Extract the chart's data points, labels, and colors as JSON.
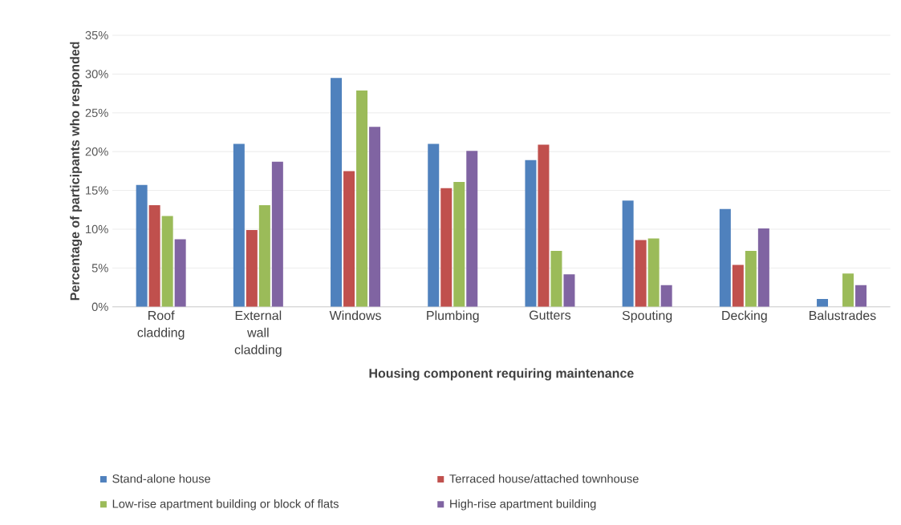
{
  "chart_data": {
    "type": "bar",
    "xlabel": "Housing component requiring maintenance",
    "ylabel": "Percentage of participants who responded",
    "categories": [
      "Roof cladding",
      "External wall cladding",
      "Windows",
      "Plumbing",
      "Gutters",
      "Spouting",
      "Decking",
      "Balustrades"
    ],
    "series": [
      {
        "name": "Stand-alone house",
        "color": "#4f81bd",
        "values": [
          15.7,
          21.0,
          29.5,
          21.0,
          18.9,
          13.7,
          12.6,
          1.0
        ]
      },
      {
        "name": "Terraced house/attached townhouse",
        "color": "#c0504d",
        "values": [
          13.1,
          9.9,
          17.5,
          15.3,
          20.9,
          8.6,
          5.4,
          0
        ]
      },
      {
        "name": "Low-rise apartment building or block of flats",
        "color": "#9bbb59",
        "values": [
          11.7,
          13.1,
          27.9,
          16.1,
          7.2,
          8.8,
          7.2,
          4.3
        ]
      },
      {
        "name": "High-rise apartment building",
        "color": "#8064a2",
        "values": [
          8.7,
          18.7,
          23.2,
          20.1,
          4.2,
          2.8,
          10.1,
          2.8
        ]
      }
    ],
    "ylim": [
      0,
      35
    ],
    "yticks": [
      {
        "value": 0,
        "label": "0%"
      },
      {
        "value": 5,
        "label": "5%"
      },
      {
        "value": 10,
        "label": "10%"
      },
      {
        "value": 15,
        "label": "15%"
      },
      {
        "value": 20,
        "label": "20%"
      },
      {
        "value": 25,
        "label": "25%"
      },
      {
        "value": 30,
        "label": "30%"
      },
      {
        "value": 35,
        "label": "35%"
      }
    ],
    "grid": "y",
    "legend": "bottom"
  }
}
